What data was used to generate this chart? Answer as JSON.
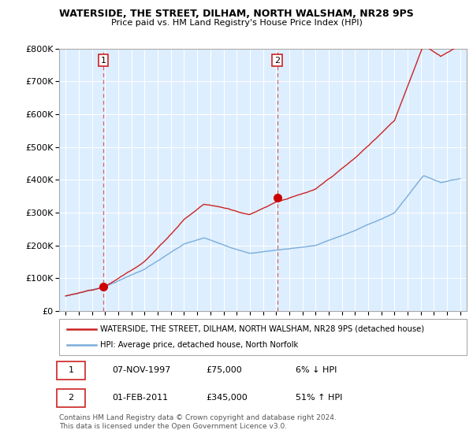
{
  "title": "WATERSIDE, THE STREET, DILHAM, NORTH WALSHAM, NR28 9PS",
  "subtitle": "Price paid vs. HM Land Registry's House Price Index (HPI)",
  "ylim": [
    0,
    800000
  ],
  "yticks": [
    0,
    100000,
    200000,
    300000,
    400000,
    500000,
    600000,
    700000,
    800000
  ],
  "ytick_labels": [
    "£0",
    "£100K",
    "£200K",
    "£300K",
    "£400K",
    "£500K",
    "£600K",
    "£700K",
    "£800K"
  ],
  "sale1_x": 1997.85,
  "sale1_y": 75000,
  "sale1_label": "1",
  "sale2_x": 2011.08,
  "sale2_y": 345000,
  "sale2_label": "2",
  "hpi_color": "#7aaddb",
  "price_color": "#cc2222",
  "dot_color": "#cc0000",
  "vline_color": "#cc4444",
  "bg_color": "#ddeeff",
  "legend_box_label1": "WATERSIDE, THE STREET, DILHAM, NORTH WALSHAM, NR28 9PS (detached house)",
  "legend_box_label2": "HPI: Average price, detached house, North Norfolk",
  "table_row1": [
    "1",
    "07-NOV-1997",
    "£75,000",
    "6% ↓ HPI"
  ],
  "table_row2": [
    "2",
    "01-FEB-2011",
    "£345,000",
    "51% ↑ HPI"
  ],
  "footnote": "Contains HM Land Registry data © Crown copyright and database right 2024.\nThis data is licensed under the Open Government Licence v3.0.",
  "xlim_start": 1994.5,
  "xlim_end": 2025.5
}
